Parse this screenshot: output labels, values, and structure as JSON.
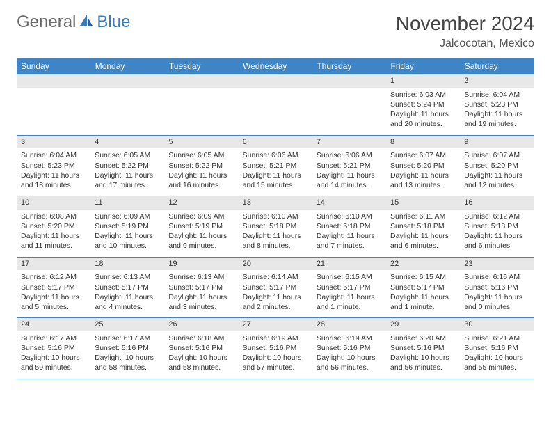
{
  "brand": {
    "word1": "General",
    "word2": "Blue"
  },
  "title": "November 2024",
  "location": "Jalcocotan, Mexico",
  "colors": {
    "header_bg": "#3d85c6",
    "header_text": "#ffffff",
    "daynum_bg": "#e8e8e8",
    "border": "#3d85c6",
    "brand_gray": "#6a6a6a",
    "brand_blue": "#3a7ab8",
    "text": "#333333",
    "background": "#ffffff"
  },
  "fonts": {
    "title_size_pt": 21,
    "location_size_pt": 12,
    "header_size_pt": 9,
    "cell_size_pt": 8
  },
  "weekdays": [
    "Sunday",
    "Monday",
    "Tuesday",
    "Wednesday",
    "Thursday",
    "Friday",
    "Saturday"
  ],
  "weeks": [
    [
      null,
      null,
      null,
      null,
      null,
      {
        "n": "1",
        "sunrise": "Sunrise: 6:03 AM",
        "sunset": "Sunset: 5:24 PM",
        "daylight": "Daylight: 11 hours and 20 minutes."
      },
      {
        "n": "2",
        "sunrise": "Sunrise: 6:04 AM",
        "sunset": "Sunset: 5:23 PM",
        "daylight": "Daylight: 11 hours and 19 minutes."
      }
    ],
    [
      {
        "n": "3",
        "sunrise": "Sunrise: 6:04 AM",
        "sunset": "Sunset: 5:23 PM",
        "daylight": "Daylight: 11 hours and 18 minutes."
      },
      {
        "n": "4",
        "sunrise": "Sunrise: 6:05 AM",
        "sunset": "Sunset: 5:22 PM",
        "daylight": "Daylight: 11 hours and 17 minutes."
      },
      {
        "n": "5",
        "sunrise": "Sunrise: 6:05 AM",
        "sunset": "Sunset: 5:22 PM",
        "daylight": "Daylight: 11 hours and 16 minutes."
      },
      {
        "n": "6",
        "sunrise": "Sunrise: 6:06 AM",
        "sunset": "Sunset: 5:21 PM",
        "daylight": "Daylight: 11 hours and 15 minutes."
      },
      {
        "n": "7",
        "sunrise": "Sunrise: 6:06 AM",
        "sunset": "Sunset: 5:21 PM",
        "daylight": "Daylight: 11 hours and 14 minutes."
      },
      {
        "n": "8",
        "sunrise": "Sunrise: 6:07 AM",
        "sunset": "Sunset: 5:20 PM",
        "daylight": "Daylight: 11 hours and 13 minutes."
      },
      {
        "n": "9",
        "sunrise": "Sunrise: 6:07 AM",
        "sunset": "Sunset: 5:20 PM",
        "daylight": "Daylight: 11 hours and 12 minutes."
      }
    ],
    [
      {
        "n": "10",
        "sunrise": "Sunrise: 6:08 AM",
        "sunset": "Sunset: 5:20 PM",
        "daylight": "Daylight: 11 hours and 11 minutes."
      },
      {
        "n": "11",
        "sunrise": "Sunrise: 6:09 AM",
        "sunset": "Sunset: 5:19 PM",
        "daylight": "Daylight: 11 hours and 10 minutes."
      },
      {
        "n": "12",
        "sunrise": "Sunrise: 6:09 AM",
        "sunset": "Sunset: 5:19 PM",
        "daylight": "Daylight: 11 hours and 9 minutes."
      },
      {
        "n": "13",
        "sunrise": "Sunrise: 6:10 AM",
        "sunset": "Sunset: 5:18 PM",
        "daylight": "Daylight: 11 hours and 8 minutes."
      },
      {
        "n": "14",
        "sunrise": "Sunrise: 6:10 AM",
        "sunset": "Sunset: 5:18 PM",
        "daylight": "Daylight: 11 hours and 7 minutes."
      },
      {
        "n": "15",
        "sunrise": "Sunrise: 6:11 AM",
        "sunset": "Sunset: 5:18 PM",
        "daylight": "Daylight: 11 hours and 6 minutes."
      },
      {
        "n": "16",
        "sunrise": "Sunrise: 6:12 AM",
        "sunset": "Sunset: 5:18 PM",
        "daylight": "Daylight: 11 hours and 6 minutes."
      }
    ],
    [
      {
        "n": "17",
        "sunrise": "Sunrise: 6:12 AM",
        "sunset": "Sunset: 5:17 PM",
        "daylight": "Daylight: 11 hours and 5 minutes."
      },
      {
        "n": "18",
        "sunrise": "Sunrise: 6:13 AM",
        "sunset": "Sunset: 5:17 PM",
        "daylight": "Daylight: 11 hours and 4 minutes."
      },
      {
        "n": "19",
        "sunrise": "Sunrise: 6:13 AM",
        "sunset": "Sunset: 5:17 PM",
        "daylight": "Daylight: 11 hours and 3 minutes."
      },
      {
        "n": "20",
        "sunrise": "Sunrise: 6:14 AM",
        "sunset": "Sunset: 5:17 PM",
        "daylight": "Daylight: 11 hours and 2 minutes."
      },
      {
        "n": "21",
        "sunrise": "Sunrise: 6:15 AM",
        "sunset": "Sunset: 5:17 PM",
        "daylight": "Daylight: 11 hours and 1 minute."
      },
      {
        "n": "22",
        "sunrise": "Sunrise: 6:15 AM",
        "sunset": "Sunset: 5:17 PM",
        "daylight": "Daylight: 11 hours and 1 minute."
      },
      {
        "n": "23",
        "sunrise": "Sunrise: 6:16 AM",
        "sunset": "Sunset: 5:16 PM",
        "daylight": "Daylight: 11 hours and 0 minutes."
      }
    ],
    [
      {
        "n": "24",
        "sunrise": "Sunrise: 6:17 AM",
        "sunset": "Sunset: 5:16 PM",
        "daylight": "Daylight: 10 hours and 59 minutes."
      },
      {
        "n": "25",
        "sunrise": "Sunrise: 6:17 AM",
        "sunset": "Sunset: 5:16 PM",
        "daylight": "Daylight: 10 hours and 58 minutes."
      },
      {
        "n": "26",
        "sunrise": "Sunrise: 6:18 AM",
        "sunset": "Sunset: 5:16 PM",
        "daylight": "Daylight: 10 hours and 58 minutes."
      },
      {
        "n": "27",
        "sunrise": "Sunrise: 6:19 AM",
        "sunset": "Sunset: 5:16 PM",
        "daylight": "Daylight: 10 hours and 57 minutes."
      },
      {
        "n": "28",
        "sunrise": "Sunrise: 6:19 AM",
        "sunset": "Sunset: 5:16 PM",
        "daylight": "Daylight: 10 hours and 56 minutes."
      },
      {
        "n": "29",
        "sunrise": "Sunrise: 6:20 AM",
        "sunset": "Sunset: 5:16 PM",
        "daylight": "Daylight: 10 hours and 56 minutes."
      },
      {
        "n": "30",
        "sunrise": "Sunrise: 6:21 AM",
        "sunset": "Sunset: 5:16 PM",
        "daylight": "Daylight: 10 hours and 55 minutes."
      }
    ]
  ]
}
